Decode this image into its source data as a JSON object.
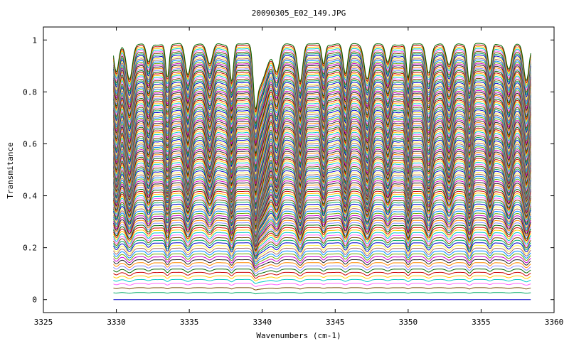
{
  "chart_data": {
    "type": "line",
    "title": "20090305_E02_149.JPG",
    "xlabel": "Wavenumbers (cm-1)",
    "ylabel": "Transmitance",
    "xlim": [
      3325,
      3360
    ],
    "ylim": [
      -0.05,
      1.05
    ],
    "x_ticks": [
      "3325",
      "3330",
      "3335",
      "3340",
      "3345",
      "3350",
      "3355",
      "3360"
    ],
    "y_ticks": [
      "0",
      "0.2",
      "0.4",
      "0.6",
      "0.8",
      "1"
    ],
    "x_data_range": [
      3329.8,
      3358.4
    ],
    "absorption_lines_cm1": [
      3330.0,
      3330.9,
      3332.2,
      3333.5,
      3334.9,
      3336.4,
      3337.9,
      3339.5,
      3341.0,
      3342.6,
      3344.2,
      3345.7,
      3347.2,
      3348.6,
      3350.0,
      3351.4,
      3352.8,
      3354.2,
      3355.6,
      3356.9,
      3358.1
    ],
    "deep_band_center_cm1": 3339.6,
    "series_count": 120,
    "baseline_range": [
      0.0,
      0.99
    ],
    "grid": false,
    "legend": "none",
    "palette": [
      "#0000cc",
      "#00aa66",
      "#7a4a00",
      "#ff66ff",
      "#00c8c8",
      "#ffcc00",
      "#cc0000",
      "#006600",
      "#8888ff",
      "#ff8800",
      "#222222",
      "#cc00cc",
      "#66aa00",
      "#0088ff",
      "#aa6666",
      "#ffee44"
    ]
  }
}
